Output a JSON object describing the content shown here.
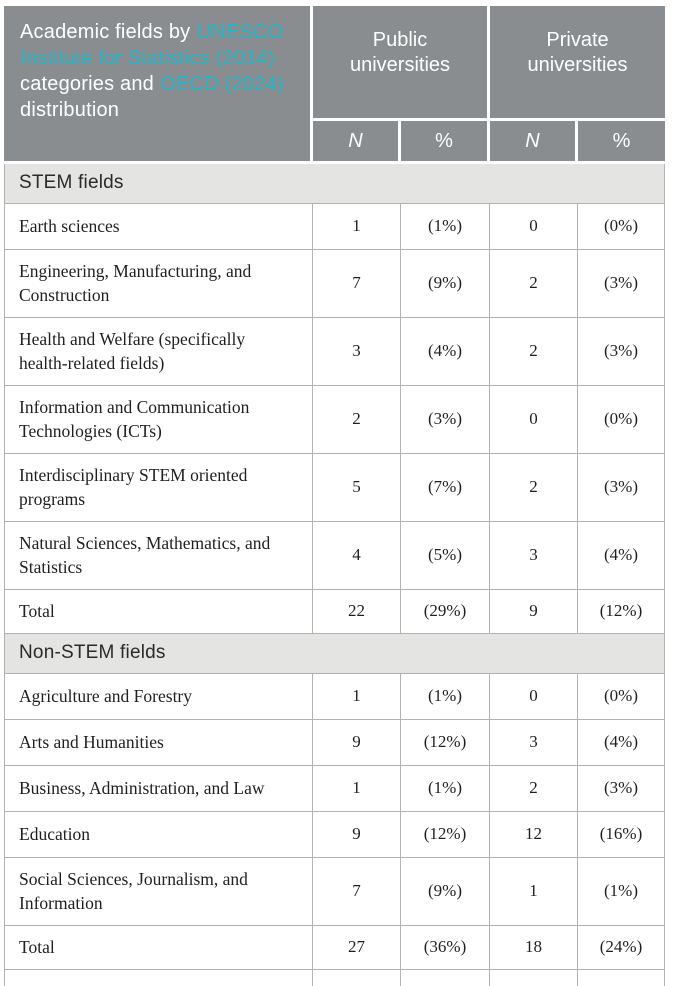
{
  "table": {
    "header": {
      "title_segments": [
        {
          "text": "Academic fields by ",
          "style": "plain"
        },
        {
          "text": "UNESCO Institute for Statistics (2014)",
          "style": "accent"
        },
        {
          "text": " categories and ",
          "style": "plain"
        },
        {
          "text": "OECD (2024)",
          "style": "accent"
        },
        {
          "text": " distribution",
          "style": "plain"
        }
      ],
      "column_groups": [
        {
          "label": "Public universities"
        },
        {
          "label": "Private universities"
        }
      ],
      "subheaders": [
        "N",
        "%",
        "N",
        "%"
      ]
    },
    "sections": [
      {
        "title": "STEM fields",
        "rows": [
          {
            "label": "Earth sciences",
            "values": [
              "1",
              "(1%)",
              "0",
              "(0%)"
            ]
          },
          {
            "label": "Engineering, Manufacturing, and Construction",
            "values": [
              "7",
              "(9%)",
              "2",
              "(3%)"
            ]
          },
          {
            "label": "Health and Welfare (specifically health-related fields)",
            "values": [
              "3",
              "(4%)",
              "2",
              "(3%)"
            ]
          },
          {
            "label": "Information and Communication Technologies (ICTs)",
            "values": [
              "2",
              "(3%)",
              "0",
              "(0%)"
            ]
          },
          {
            "label": "Interdisciplinary STEM oriented programs",
            "values": [
              "5",
              "(7%)",
              "2",
              "(3%)"
            ]
          },
          {
            "label": "Natural Sciences, Mathematics, and Statistics",
            "values": [
              "4",
              "(5%)",
              "3",
              "(4%)"
            ]
          }
        ],
        "total_row": {
          "label": "Total",
          "values": [
            "22",
            "(29%)",
            "9",
            "(12%)"
          ]
        }
      },
      {
        "title": "Non-STEM fields",
        "rows": [
          {
            "label": "Agriculture and Forestry",
            "values": [
              "1",
              "(1%)",
              "0",
              "(0%)"
            ]
          },
          {
            "label": "Arts and Humanities",
            "values": [
              "9",
              "(12%)",
              "3",
              "(4%)"
            ]
          },
          {
            "label": "Business, Administration, and Law",
            "values": [
              "1",
              "(1%)",
              "2",
              "(3%)"
            ]
          },
          {
            "label": "Education",
            "values": [
              "9",
              "(12%)",
              "12",
              "(16%)"
            ]
          },
          {
            "label": "Social Sciences, Journalism, and Information",
            "values": [
              "7",
              "(9%)",
              "1",
              "(1%)"
            ]
          }
        ],
        "total_row": {
          "label": "Total",
          "values": [
            "27",
            "(36%)",
            "18",
            "(24%)"
          ]
        }
      }
    ]
  },
  "colors": {
    "header_background": "#8a8d8f",
    "accent_link": "#26b6c8",
    "section_background": "#e4e4e2",
    "grid_border": "#b2b2b0",
    "header_text": "#ffffff",
    "body_text": "#1f1f1f"
  }
}
